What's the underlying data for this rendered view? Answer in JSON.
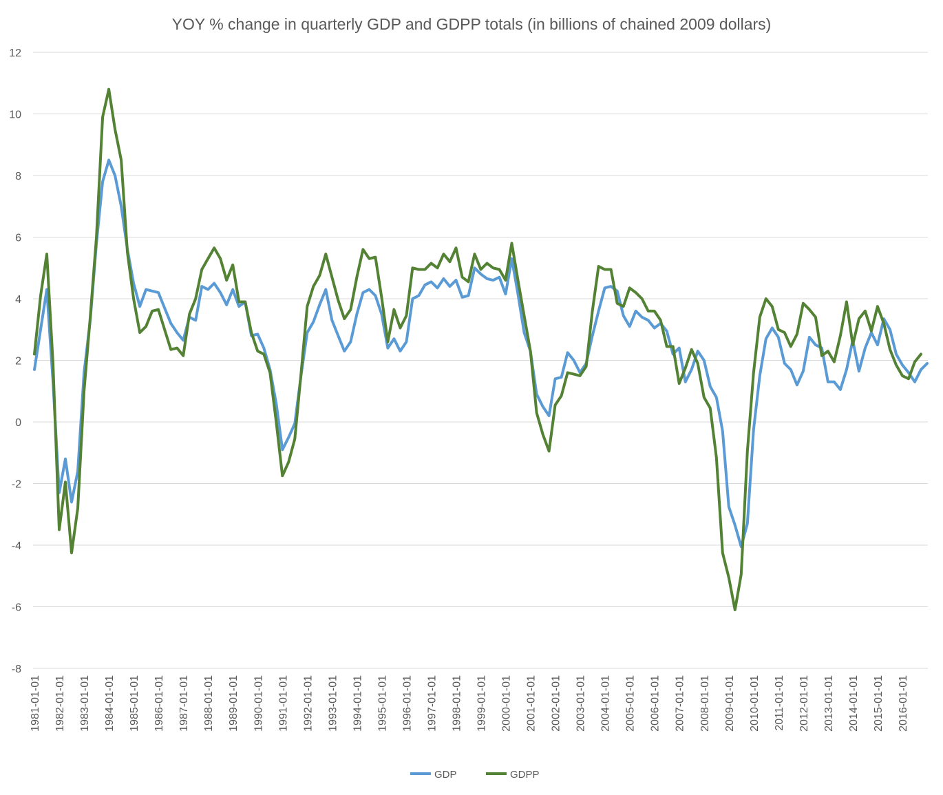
{
  "chart_data": {
    "type": "line",
    "title": "YOY % change in quarterly GDP and GDPP totals (in billions of chained 2009 dollars)",
    "xlabel": "",
    "ylabel": "",
    "ylim": [
      -8,
      12
    ],
    "yticks": [
      12,
      10,
      8,
      6,
      4,
      2,
      0,
      -2,
      -4,
      -6,
      -8
    ],
    "x_start": "1981-01-01",
    "x_tick_labels": [
      "1981-01-01",
      "1982-01-01",
      "1983-01-01",
      "1984-01-01",
      "1985-01-01",
      "1986-01-01",
      "1987-01-01",
      "1988-01-01",
      "1989-01-01",
      "1990-01-01",
      "1991-01-01",
      "1992-01-01",
      "1993-01-01",
      "1994-01-01",
      "1995-01-01",
      "1996-01-01",
      "1997-01-01",
      "1998-01-01",
      "1999-01-01",
      "2000-01-01",
      "2001-01-01",
      "2002-01-01",
      "2003-01-01",
      "2004-01-01",
      "2005-01-01",
      "2006-01-01",
      "2007-01-01",
      "2008-01-01",
      "2009-01-01",
      "2010-01-01",
      "2011-01-01",
      "2012-01-01",
      "2013-01-01",
      "2014-01-01",
      "2015-01-01",
      "2016-01-01"
    ],
    "grid": true,
    "legend_position": "bottom",
    "series": [
      {
        "name": "GDP",
        "color": "#5b9bd5",
        "values": [
          1.7,
          3.0,
          4.3,
          1.3,
          -2.3,
          -1.2,
          -2.6,
          -1.6,
          1.6,
          3.3,
          5.8,
          7.8,
          8.5,
          8.0,
          7.0,
          5.6,
          4.5,
          3.75,
          4.3,
          4.25,
          4.2,
          3.7,
          3.2,
          2.9,
          2.65,
          3.4,
          3.3,
          4.4,
          4.3,
          4.5,
          4.2,
          3.8,
          4.3,
          3.75,
          3.9,
          2.8,
          2.85,
          2.4,
          1.7,
          0.6,
          -0.9,
          -0.5,
          -0.05,
          1.5,
          2.9,
          3.25,
          3.8,
          4.3,
          3.3,
          2.8,
          2.3,
          2.6,
          3.5,
          4.2,
          4.3,
          4.1,
          3.5,
          2.4,
          2.7,
          2.3,
          2.6,
          4.0,
          4.1,
          4.45,
          4.55,
          4.35,
          4.65,
          4.4,
          4.6,
          4.05,
          4.1,
          5.0,
          4.8,
          4.65,
          4.6,
          4.7,
          4.15,
          5.3,
          4.15,
          2.9,
          2.3,
          0.9,
          0.5,
          0.2,
          1.4,
          1.45,
          2.25,
          2.0,
          1.6,
          1.9,
          2.8,
          3.6,
          4.35,
          4.4,
          4.25,
          3.45,
          3.1,
          3.6,
          3.4,
          3.3,
          3.05,
          3.2,
          2.95,
          2.2,
          2.4,
          1.3,
          1.7,
          2.3,
          2.0,
          1.15,
          0.8,
          -0.3,
          -2.75,
          -3.35,
          -4.05,
          -3.3,
          -0.25,
          1.5,
          2.7,
          3.05,
          2.75,
          1.9,
          1.7,
          1.2,
          1.65,
          2.75,
          2.5,
          2.4,
          1.3,
          1.3,
          1.05,
          1.7,
          2.65,
          1.65,
          2.4,
          2.9,
          2.5,
          3.35,
          3.0,
          2.2,
          1.85,
          1.6,
          1.3,
          1.7,
          1.9
        ]
      },
      {
        "name": "GDPP",
        "color": "#548235",
        "values": [
          2.2,
          4.1,
          5.45,
          1.9,
          -3.5,
          -1.95,
          -4.25,
          -2.8,
          1.0,
          3.4,
          6.0,
          9.9,
          10.8,
          9.5,
          8.5,
          5.5,
          4.0,
          2.9,
          3.1,
          3.6,
          3.65,
          3.0,
          2.35,
          2.4,
          2.15,
          3.5,
          4.0,
          4.95,
          5.3,
          5.65,
          5.3,
          4.6,
          5.1,
          3.9,
          3.9,
          2.9,
          2.3,
          2.2,
          1.6,
          0.0,
          -1.75,
          -1.3,
          -0.55,
          1.55,
          3.75,
          4.4,
          4.75,
          5.45,
          4.7,
          3.95,
          3.35,
          3.65,
          4.7,
          5.6,
          5.3,
          5.35,
          4.05,
          2.6,
          3.65,
          3.05,
          3.45,
          5.0,
          4.95,
          4.95,
          5.15,
          5.0,
          5.45,
          5.2,
          5.65,
          4.7,
          4.55,
          5.45,
          4.95,
          5.15,
          5.0,
          4.95,
          4.6,
          5.8,
          4.6,
          3.45,
          2.3,
          0.3,
          -0.4,
          -0.95,
          0.55,
          0.85,
          1.6,
          1.55,
          1.5,
          1.8,
          3.6,
          5.05,
          4.95,
          4.95,
          3.85,
          3.75,
          4.35,
          4.2,
          4.0,
          3.6,
          3.6,
          3.3,
          2.45,
          2.45,
          1.25,
          1.75,
          2.35,
          1.9,
          0.8,
          0.45,
          -1.15,
          -4.25,
          -5.05,
          -6.1,
          -4.95,
          -0.95,
          1.6,
          3.4,
          4.0,
          3.75,
          3.0,
          2.9,
          2.45,
          2.85,
          3.85,
          3.65,
          3.4,
          2.15,
          2.3,
          1.95,
          2.8,
          3.9,
          2.5,
          3.35,
          3.6,
          2.95,
          3.75,
          3.2,
          2.35,
          1.85,
          1.5,
          1.4,
          1.95,
          2.2
        ]
      }
    ]
  }
}
